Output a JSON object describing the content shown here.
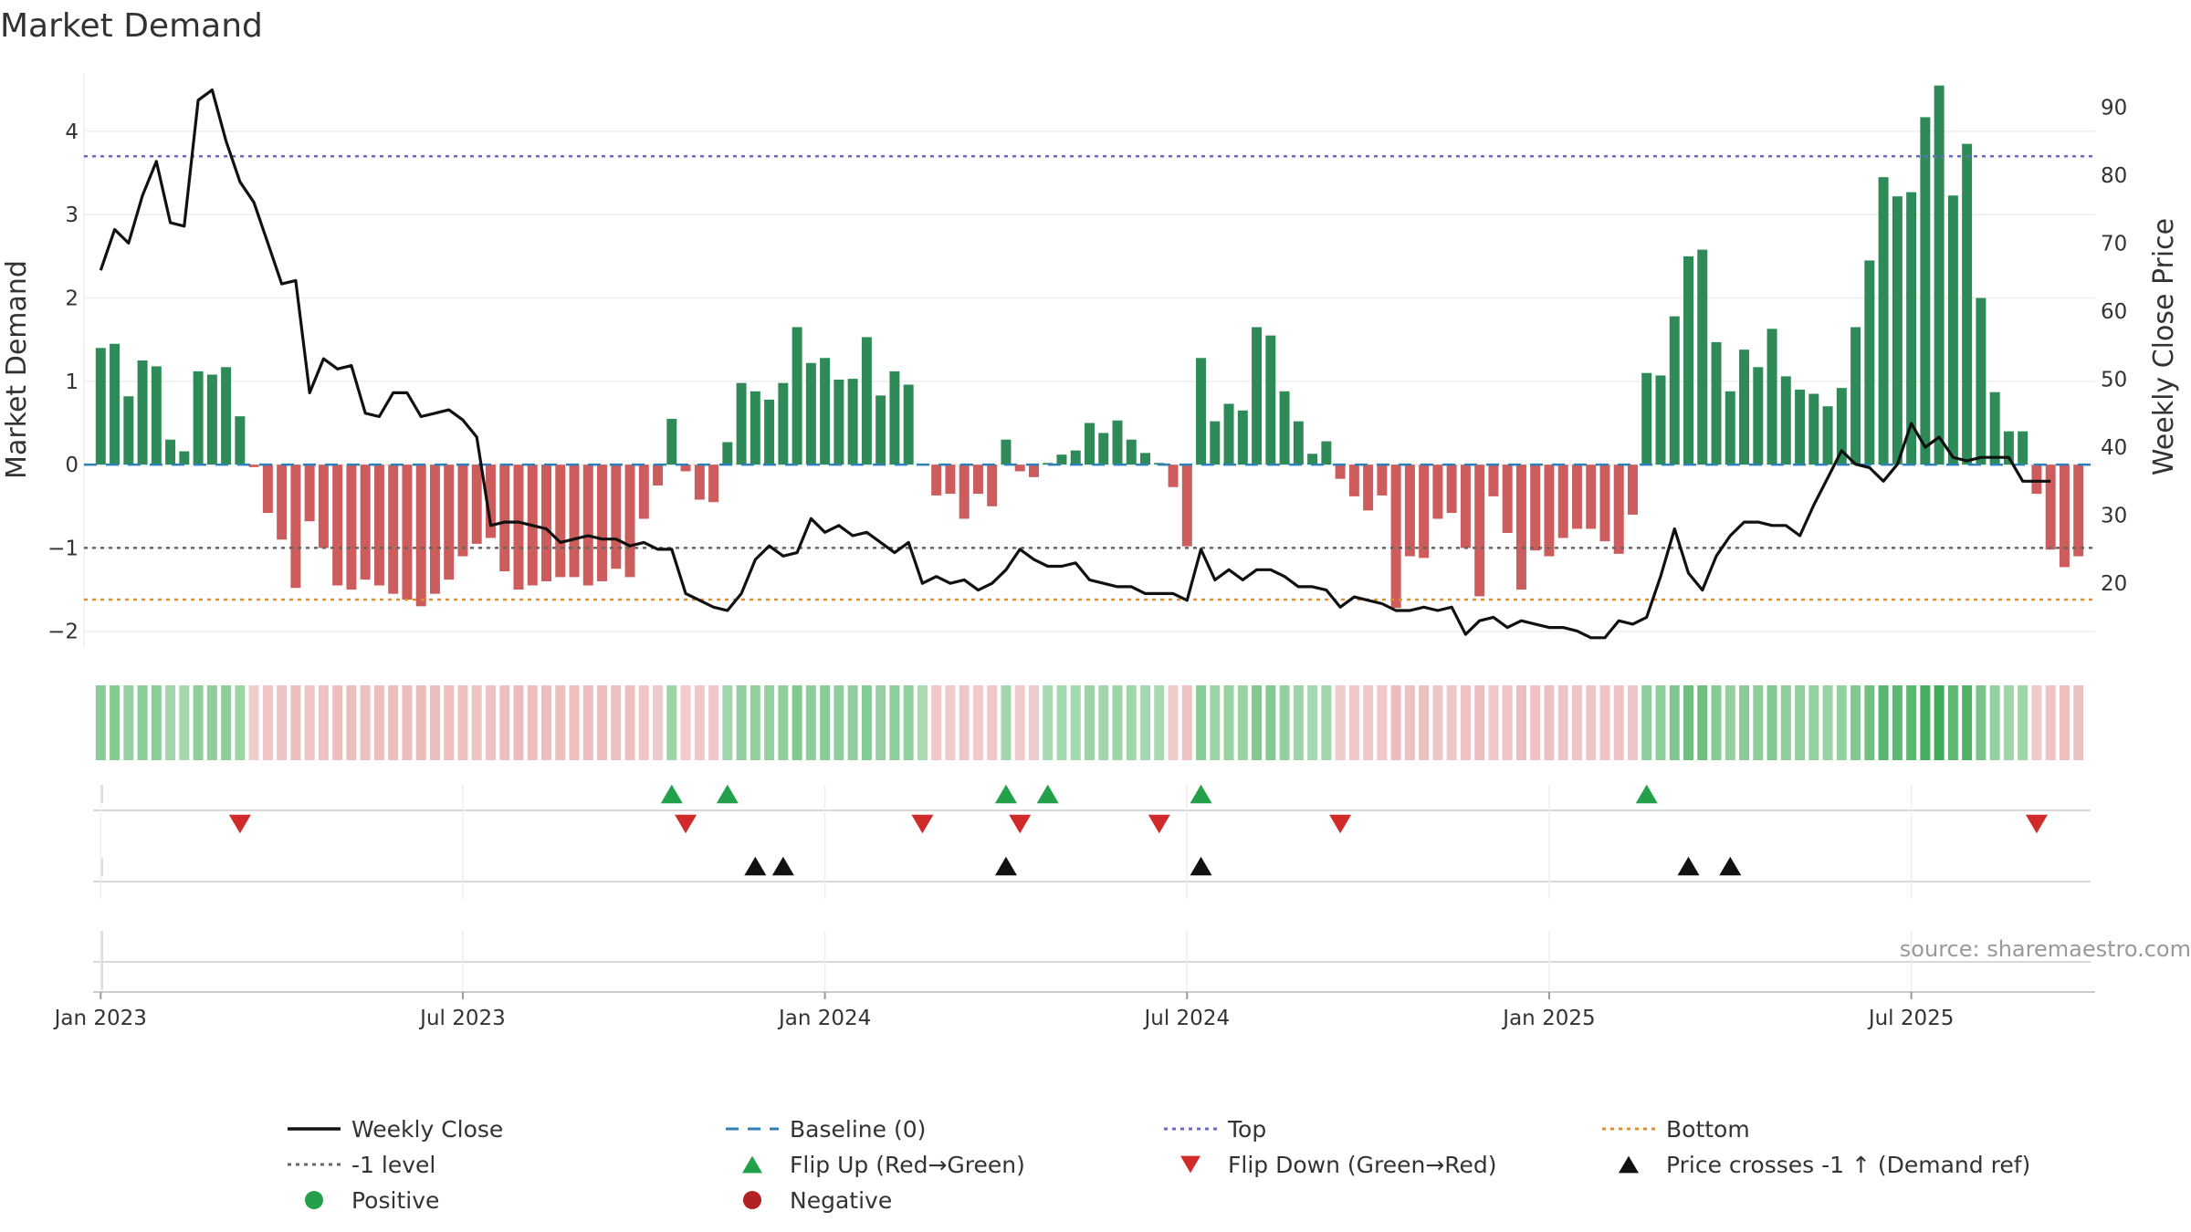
{
  "chart_data": {
    "type": "bar",
    "title": "Market Demand",
    "ylabel": "Market Demand",
    "y2label": "Weekly Close Price",
    "ylim": [
      -2.2,
      4.7
    ],
    "y2lim": [
      10.5,
      95
    ],
    "yticks": [
      {
        "value": 4,
        "label": "4"
      },
      {
        "value": 3,
        "label": "3"
      },
      {
        "value": 2,
        "label": "2"
      },
      {
        "value": 1,
        "label": "1"
      },
      {
        "value": 0,
        "label": "0"
      },
      {
        "value": -1,
        "label": "−1"
      },
      {
        "value": -2,
        "label": "−2"
      }
    ],
    "y2ticks": [
      {
        "value": 90,
        "label": "90"
      },
      {
        "value": 80,
        "label": "80"
      },
      {
        "value": 70,
        "label": "70"
      },
      {
        "value": 60,
        "label": "60"
      },
      {
        "value": 50,
        "label": "50"
      },
      {
        "value": 40,
        "label": "40"
      },
      {
        "value": 30,
        "label": "30"
      },
      {
        "value": 20,
        "label": "20"
      }
    ],
    "xticks": [
      {
        "week": 0,
        "label": "Jan 2023"
      },
      {
        "week": 26,
        "label": "Jul 2023"
      },
      {
        "week": 52,
        "label": "Jan 2024"
      },
      {
        "week": 78,
        "label": "Jul 2024"
      },
      {
        "week": 104,
        "label": "Jan 2025"
      },
      {
        "week": 130,
        "label": "Jul 2025"
      }
    ],
    "week_range": [
      -1.2,
      143.2
    ],
    "week_start": "2022-12-30",
    "reference_lines": {
      "top": 3.7,
      "bottom": -1.62,
      "minus_one": -1.0,
      "baseline": 0
    },
    "demand": [
      1.4,
      1.45,
      0.82,
      1.25,
      1.18,
      0.3,
      0.16,
      1.12,
      1.08,
      1.17,
      0.58,
      -0.03,
      -0.58,
      -0.9,
      -1.48,
      -0.68,
      -1.0,
      -1.45,
      -1.5,
      -1.38,
      -1.45,
      -1.55,
      -1.62,
      -1.7,
      -1.55,
      -1.38,
      -1.1,
      -0.95,
      -0.88,
      -1.28,
      -1.5,
      -1.45,
      -1.4,
      -1.35,
      -1.35,
      -1.45,
      -1.4,
      -1.25,
      -1.35,
      -0.65,
      -0.25,
      0.55,
      -0.08,
      -0.42,
      -0.45,
      0.27,
      0.98,
      0.88,
      0.78,
      0.98,
      1.65,
      1.22,
      1.28,
      1.02,
      1.03,
      1.53,
      0.83,
      1.12,
      0.96,
      0.0,
      -0.37,
      -0.35,
      -0.65,
      -0.35,
      -0.5,
      0.3,
      -0.08,
      -0.15,
      0.02,
      0.12,
      0.17,
      0.5,
      0.38,
      0.53,
      0.3,
      0.14,
      0.02,
      -0.27,
      -0.98,
      1.28,
      0.52,
      0.73,
      0.65,
      1.65,
      1.55,
      0.88,
      0.52,
      0.13,
      0.28,
      -0.17,
      -0.38,
      -0.55,
      -0.37,
      -1.72,
      -1.1,
      -1.12,
      -0.65,
      -0.58,
      -1.0,
      -1.58,
      -0.38,
      -0.82,
      -1.5,
      -1.03,
      -1.1,
      -0.88,
      -0.77,
      -0.77,
      -0.92,
      -1.07,
      -0.6,
      1.1,
      1.07,
      1.78,
      2.5,
      2.58,
      1.47,
      0.88,
      1.38,
      1.17,
      1.63,
      1.06,
      0.9,
      0.85,
      0.7,
      0.92,
      1.65,
      2.45,
      3.45,
      3.22,
      3.27,
      4.17,
      4.55,
      3.23,
      3.85,
      2.0,
      0.87,
      0.4,
      0.4,
      -0.35,
      -1.02,
      -1.23,
      -1.1
    ],
    "price": [
      66,
      72,
      70,
      77,
      82,
      73,
      72.5,
      91,
      92.5,
      85,
      79,
      76,
      70,
      64,
      64.5,
      48,
      53,
      51.5,
      52,
      45,
      44.5,
      48,
      48,
      44.5,
      45,
      45.5,
      44,
      41.5,
      28.5,
      29,
      29,
      28.5,
      28,
      26,
      26.5,
      27,
      26.5,
      26.5,
      25.5,
      26,
      25,
      25,
      18.5,
      17.5,
      16.5,
      16,
      18.5,
      23.5,
      25.5,
      24,
      24.5,
      29.5,
      27.5,
      28.5,
      27,
      27.5,
      26,
      24.5,
      26,
      20,
      21,
      20,
      20.5,
      19,
      20,
      22,
      25,
      23.5,
      22.5,
      22.5,
      23,
      20.5,
      20,
      19.5,
      19.5,
      18.5,
      18.5,
      18.5,
      17.5,
      25,
      20.5,
      22,
      20.5,
      22,
      22,
      21,
      19.5,
      19.5,
      19,
      16.5,
      18,
      17.5,
      17,
      16,
      16,
      16.5,
      16,
      16.5,
      12.5,
      14.5,
      15,
      13.5,
      14.5,
      14,
      13.5,
      13.5,
      13,
      12,
      12,
      14.5,
      14,
      15,
      21,
      28,
      21.5,
      19,
      24,
      27,
      29,
      29,
      28.5,
      28.5,
      27,
      31.5,
      35.5,
      39.5,
      37.5,
      37,
      35,
      37.5,
      43.5,
      40,
      41.5,
      38.5,
      38,
      38.5,
      38.5,
      38.5,
      35,
      35,
      35
    ],
    "flip_up_weeks": [
      41,
      45,
      65,
      68,
      79,
      111
    ],
    "flip_down_weeks": [
      10,
      42,
      59,
      66,
      76,
      89,
      139
    ],
    "price_cross_weeks": [
      47,
      49,
      65,
      79,
      114,
      117
    ],
    "legend": [
      {
        "label": "Weekly Close",
        "kind": "line",
        "color": "#111111"
      },
      {
        "label": "Baseline (0)",
        "kind": "dash",
        "color": "#2f7fb8"
      },
      {
        "label": "Top",
        "kind": "dot",
        "color": "#6a6ac8"
      },
      {
        "label": "Bottom",
        "kind": "dot",
        "color": "#e0902a"
      },
      {
        "label": "-1 level",
        "kind": "dot",
        "color": "#666666"
      },
      {
        "label": "Flip Up (Red→Green)",
        "kind": "tri-up",
        "color": "#22a04a"
      },
      {
        "label": "Flip Down (Green→Red)",
        "kind": "tri-down",
        "color": "#d02a2a"
      },
      {
        "label": "Price crosses -1 ↑ (Demand ref)",
        "kind": "tri-up",
        "color": "#111111"
      },
      {
        "label": "Positive",
        "kind": "circle",
        "color": "#22a04a"
      },
      {
        "label": "Negative",
        "kind": "circle",
        "color": "#b22222"
      }
    ],
    "source": "source: sharemaestro.com"
  },
  "colors": {
    "positive_bar": "#2e8b57",
    "negative_bar": "#cd5c5c",
    "grid": "#eeeeee",
    "axis": "#cccccc"
  }
}
